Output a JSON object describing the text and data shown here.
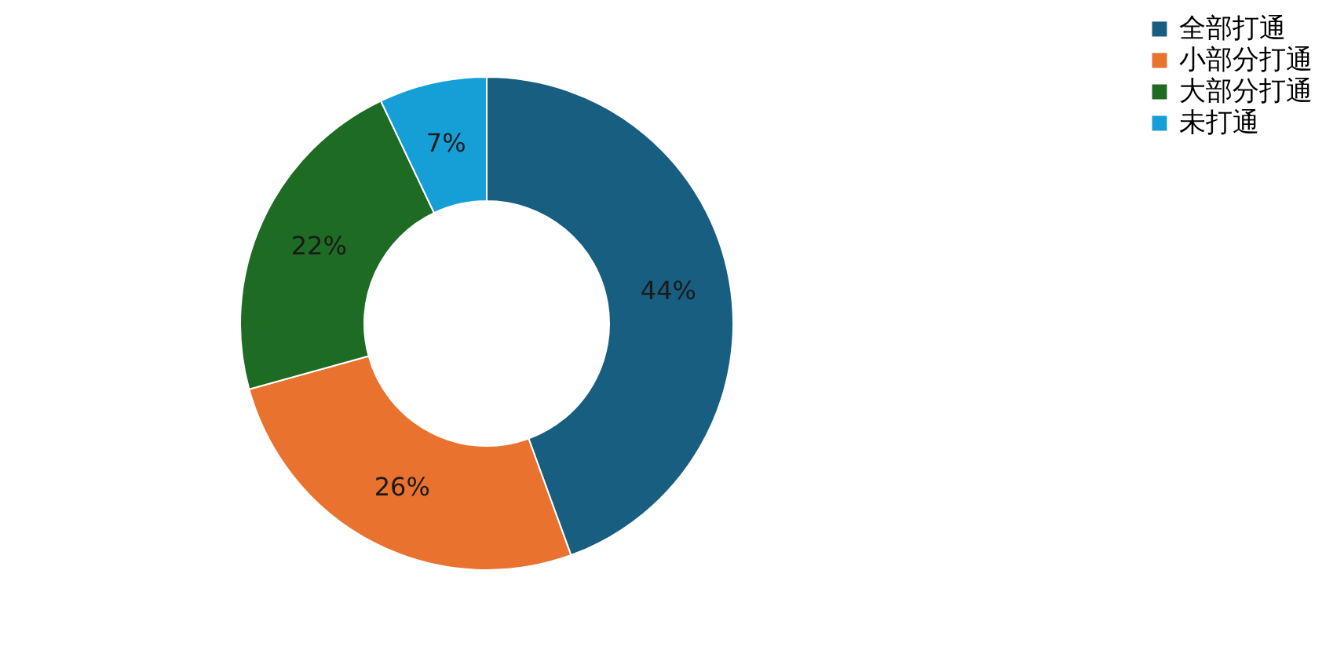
{
  "chart_data": {
    "type": "donut",
    "categories": [
      "全部打通",
      "小部分打通",
      "大部分打通",
      "未打通"
    ],
    "values": [
      44,
      26,
      22,
      7
    ],
    "colors": [
      "#175e80",
      "#e8722e",
      "#1e6b23",
      "#169fd6"
    ],
    "value_labels": [
      "44%",
      "26%",
      "22%",
      "7%"
    ],
    "legend": "right"
  }
}
